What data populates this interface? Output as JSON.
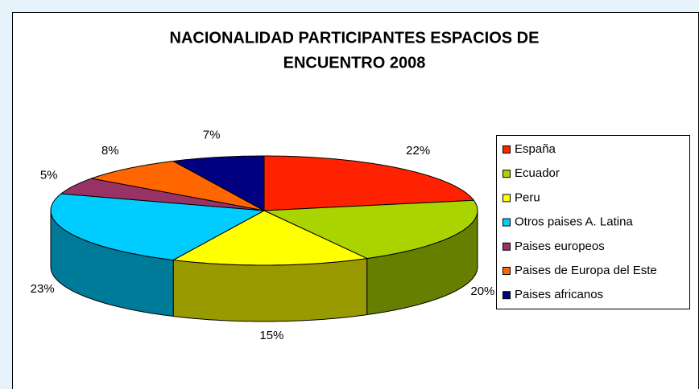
{
  "chart_data": {
    "type": "pie3d",
    "title": [
      "NACIONALIDAD PARTICIPANTES ESPACIOS DE",
      "ENCUENTRO 2008"
    ],
    "categories": [
      "España",
      "Ecuador",
      "Peru",
      "Otros paises A. Latina",
      "Paises europeos",
      "Paises de Europa del Este",
      "Paises africanos"
    ],
    "values": [
      22,
      20,
      15,
      23,
      5,
      8,
      7
    ],
    "value_labels": [
      "22%",
      "20%",
      "15%",
      "23%",
      "5%",
      "8%",
      "7%"
    ],
    "colors": [
      "#ff2200",
      "#aad400",
      "#ffff00",
      "#00ccff",
      "#993366",
      "#ff6600",
      "#000080"
    ],
    "legend": "right"
  }
}
